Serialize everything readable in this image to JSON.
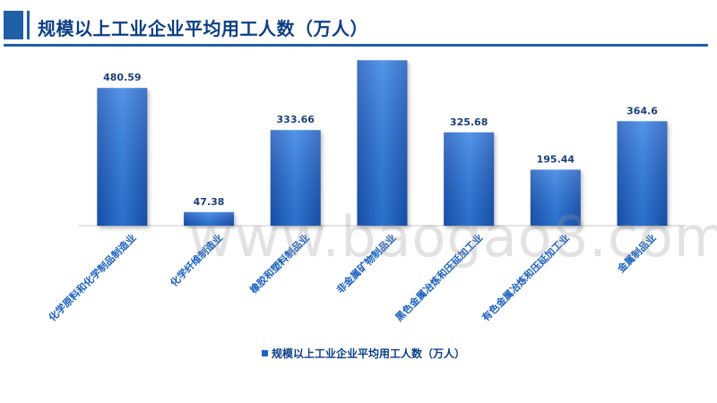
{
  "header": {
    "title": "规模以上工业企业平均用工人数（万人）"
  },
  "watermark": "www.baogao8.com",
  "colors": {
    "accent": "#1f5fa8",
    "bar": "#1e63c9",
    "title_text": "#0b3f86"
  },
  "chart_data": {
    "type": "bar",
    "categories": [
      "化学原料和化学制品制造业",
      "化学纤维制造业",
      "橡胶和塑料制品业",
      "非金属矿物制品业",
      "黑色金属冶炼和压延加工业",
      "有色金属冶炼和压延加工业",
      "金属制品业"
    ],
    "value_labels": [
      "480.59",
      "47.38",
      "333.66",
      "577.23",
      "325.68",
      "195.44",
      "364.6"
    ],
    "series": [
      {
        "name": "规模以上工业企业平均用工人数（万人）",
        "values": [
          480.59,
          47.38,
          333.66,
          577.23,
          325.68,
          195.44,
          364.6
        ]
      }
    ],
    "ylim": [
      0,
      600
    ],
    "grid": false,
    "legend_position": "bottom",
    "title": "",
    "xlabel": "",
    "ylabel": ""
  }
}
